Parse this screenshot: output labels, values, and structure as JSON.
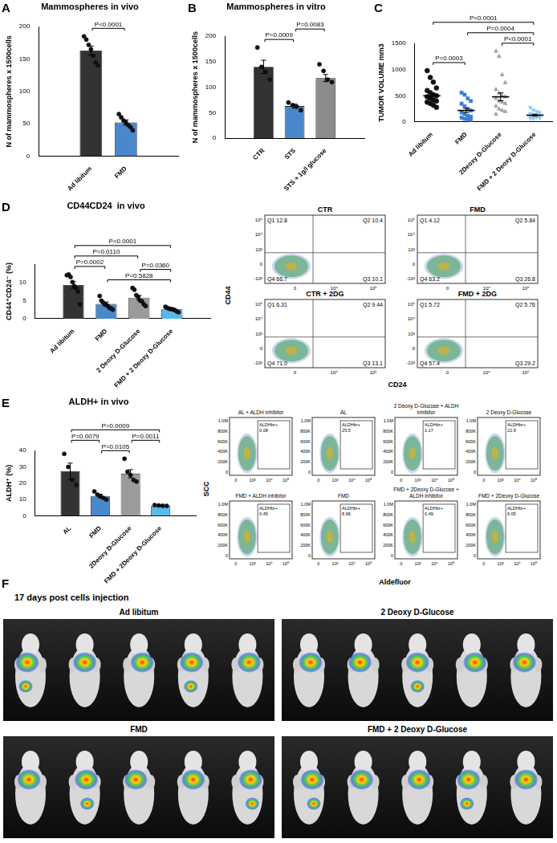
{
  "chart_data": [
    {
      "panel": "A",
      "type": "bar",
      "title": "Mammospheres in vivo",
      "y_label": "N of mammospheres x 1500cells",
      "categories": [
        "Ad libitum",
        "FMD"
      ],
      "values": [
        163,
        52
      ],
      "errors": [
        7,
        4
      ],
      "points": [
        [
          185,
          180,
          172,
          165,
          155,
          145,
          140
        ],
        [
          65,
          60,
          55,
          52,
          48,
          45,
          40
        ]
      ],
      "colors": [
        "#333333",
        "#4a88cc"
      ],
      "marker": "circle",
      "ylim": [
        0,
        200
      ],
      "yticks": [
        0,
        50,
        100,
        150,
        200
      ],
      "grid": false,
      "comparisons": [
        {
          "from": "Ad libitum",
          "to": "FMD",
          "label": "P<0.0001"
        }
      ]
    },
    {
      "panel": "B",
      "type": "bar",
      "title": "Mammospheres in vitro",
      "y_label": "N of mammospheres x 1500cells",
      "categories": [
        "CTR",
        "STS",
        "STS + 1g/l glucose"
      ],
      "values": [
        140,
        63,
        118
      ],
      "errors": [
        13,
        4,
        7
      ],
      "points": [
        [
          178,
          140,
          130,
          115
        ],
        [
          70,
          65,
          62,
          55
        ],
        [
          145,
          132,
          115,
          110
        ]
      ],
      "colors": [
        "#333333",
        "#4a88cc",
        "#8c8c8c"
      ],
      "marker": "circle",
      "ylim": [
        0,
        200
      ],
      "yticks": [
        0,
        50,
        100,
        150,
        200
      ],
      "grid": false,
      "comparisons": [
        {
          "from": "CTR",
          "to": "STS",
          "label": "P=0.0009"
        },
        {
          "from": "STS",
          "to": "STS + 1g/l glucose",
          "label": "P=0.0083"
        }
      ]
    },
    {
      "panel": "C",
      "type": "scatter",
      "y_label": "TUMOR VOLUME mm3",
      "categories": [
        "Ad libitum",
        "FMD",
        "2Deoxy D-Glucose",
        "FMD + 2 Deoxy D-Glucose"
      ],
      "values": [
        500,
        220,
        480,
        130
      ],
      "errors": [
        45,
        40,
        75,
        18
      ],
      "points": [
        [
          980,
          850,
          760,
          650,
          600,
          560,
          520,
          500,
          480,
          450,
          420,
          400,
          380,
          350,
          320,
          280
        ],
        [
          560,
          520,
          450,
          400,
          350,
          300,
          250,
          220,
          180,
          150,
          120,
          100,
          80,
          60,
          50,
          40
        ],
        [
          1350,
          1250,
          900,
          750,
          620,
          550,
          500,
          480,
          450,
          400,
          380,
          350,
          300,
          250,
          220,
          200,
          150
        ],
        [
          280,
          230,
          200,
          180,
          160,
          140,
          130,
          120,
          110,
          100,
          90,
          80,
          70,
          60
        ]
      ],
      "colors": [
        "#111111",
        "#3a7fd4",
        "#a0a0a0",
        "#8ec9ee"
      ],
      "marker": [
        "circle",
        "square",
        "triangle",
        "triangle_down"
      ],
      "ylim": [
        0,
        1500
      ],
      "yticks": [
        0,
        500,
        1000,
        1500
      ],
      "grid": false,
      "comparisons": [
        {
          "from": "Ad libitum",
          "to": "FMD",
          "label": "P=0.0003"
        },
        {
          "from": "2Deoxy D-Glucose",
          "to": "FMD + 2 Deoxy D-Glucose",
          "label": "P<0.0001"
        },
        {
          "from": "FMD",
          "to": "FMD + 2 Deoxy D-Glucose",
          "label": "P=0.0004"
        },
        {
          "from": "Ad libitum",
          "to": "FMD + 2 Deoxy D-Glucose",
          "label": "P<0.0001"
        }
      ]
    },
    {
      "panel": "D",
      "type": "bar",
      "title": "CD44CD24  in vivo",
      "y_label": "CD44⁺CD24⁻ (%)",
      "categories": [
        "Ad libitum",
        "FMD",
        "2 Deoxy D-Glucose",
        "FMD + 2 Deoxy D-Glucose"
      ],
      "values": [
        9.3,
        4.1,
        5.8,
        2.6
      ],
      "errors": [
        0.9,
        0.5,
        0.6,
        0.2
      ],
      "points": [
        [
          12.0,
          12.2,
          11.5,
          10.1,
          9.0,
          8.3,
          7.5,
          4.0
        ],
        [
          6.3,
          5.0,
          4.5,
          4.0,
          3.8,
          3.5,
          3.0,
          2.8,
          2.5
        ],
        [
          8.5,
          8.0,
          6.5,
          6.0,
          5.0,
          4.8,
          4.0,
          3.5
        ],
        [
          3.3,
          3.0,
          2.8,
          2.7,
          2.6,
          2.5,
          2.3,
          2.0,
          1.8
        ]
      ],
      "colors": [
        "#333333",
        "#4a88cc",
        "#9b9b9b",
        "#5bb8ea"
      ],
      "marker": "circle",
      "ylim": [
        0,
        15
      ],
      "yticks": [
        0,
        5,
        10
      ],
      "grid": false,
      "comparisons": [
        {
          "from": "FMD",
          "to": "FMD + 2 Deoxy D-Glucose",
          "label": "P=0.5828"
        },
        {
          "from": "2 Deoxy D-Glucose",
          "to": "FMD + 2 Deoxy D-Glucose",
          "label": "P=0.0360"
        },
        {
          "from": "Ad libitum",
          "to": "FMD",
          "label": "P=0.0002"
        },
        {
          "from": "Ad libitum",
          "to": "2 Deoxy D-Glucose",
          "label": "P=0.0110"
        },
        {
          "from": "Ad libitum",
          "to": "FMD + 2 Deoxy D-Glucose",
          "label": "P<0.0001"
        }
      ]
    },
    {
      "panel": "E",
      "type": "bar",
      "title": "ALDH+ in vivo",
      "y_label": "ALDH⁺ (%)",
      "categories": [
        "AL",
        "FMD",
        "2Deoxy D-Glucose",
        "FMD + 2Deoxy D-Glucose"
      ],
      "values": [
        27.3,
        12.2,
        25.8,
        6.3
      ],
      "errors": [
        5,
        1.1,
        2.5,
        0.2
      ],
      "points": [
        [
          38,
          30,
          22,
          19
        ],
        [
          15,
          13,
          12,
          11,
          10
        ],
        [
          35,
          27,
          25,
          22,
          21
        ],
        [
          6.6,
          6.4,
          6.2,
          6.1
        ]
      ],
      "colors": [
        "#333333",
        "#4a88cc",
        "#9b9b9b",
        "#5bb8ea"
      ],
      "marker": "circle",
      "ylim": [
        0,
        40
      ],
      "yticks": [
        0,
        10,
        20,
        30,
        40
      ],
      "grid": false,
      "comparisons": [
        {
          "from": "FMD",
          "to": "2Deoxy D-Glucose",
          "label": "P=0.0105"
        },
        {
          "from": "2Deoxy D-Glucose",
          "to": "FMD + 2Deoxy D-Glucose",
          "label": "P=0.0011"
        },
        {
          "from": "AL",
          "to": "FMD",
          "label": "P=0.0079"
        },
        {
          "from": "AL",
          "to": "FMD + 2Deoxy D-Glucose",
          "label": "P=0.0009"
        }
      ]
    }
  ],
  "flow_cytometry_D": {
    "y_axis": "CD44",
    "x_axis": "CD24",
    "x_ticks": [
      "0",
      "10⁴",
      "10⁵"
    ],
    "y_ticks": [
      "10⁵",
      "10⁴",
      "10³",
      "0",
      "-10³"
    ],
    "plots": [
      {
        "label": "CTR",
        "quadrants": [
          "Q1 12.8",
          "Q2 10.4",
          "Q3 10.1",
          "Q4 66.7"
        ]
      },
      {
        "label": "FMD",
        "quadrants": [
          "Q1 4.12",
          "Q2 5.84",
          "Q3 26.8",
          "Q4 63.2"
        ]
      },
      {
        "label": "CTR + 2DG",
        "quadrants": [
          "Q1 6.31",
          "Q2 9.44",
          "Q3 13.1",
          "Q4 71.0"
        ]
      },
      {
        "label": "FMD + 2DG",
        "quadrants": [
          "Q1 5.72",
          "Q2 5.76",
          "Q3 29.2",
          "Q4 57.4"
        ]
      }
    ]
  },
  "flow_cytometry_E": {
    "y_axis": "SCC",
    "x_axis": "Aldefluor",
    "gate": "ALDHbr+",
    "x_ticks": [
      "0",
      "10³",
      "10⁴",
      "10⁵"
    ],
    "y_ticks": [
      "1.0M",
      "800K",
      "600K",
      "400K",
      "200K",
      "0"
    ],
    "plots": [
      {
        "label": "AL + ALDH inhibitor",
        "gate_value": "0.08"
      },
      {
        "label": "AL",
        "gate_value": "25.5"
      },
      {
        "label": "2 Deoxy D-Glucose + ALDH inhibitor",
        "gate_value": "1.17"
      },
      {
        "label": "2 Deoxy D-Glucose",
        "gate_value": "22.9"
      },
      {
        "label": "FMD + ALDH inhibitor",
        "gate_value": "0.45"
      },
      {
        "label": "FMD",
        "gate_value": "8.96"
      },
      {
        "label": "FMD + 2Deoxy D-Glucose + ALDH inhibitor",
        "gate_value": "0.49"
      },
      {
        "label": "FMD + 2Deoxy D-Glucose",
        "gate_value": "6.05"
      }
    ]
  },
  "mouse_imaging_F": {
    "panel": "F",
    "title": "17 days post cells injection",
    "groups": [
      "Ad libitum",
      "2 Deoxy D-Glucose",
      "FMD",
      "FMD + 2 Deoxy D-Glucose"
    ]
  }
}
